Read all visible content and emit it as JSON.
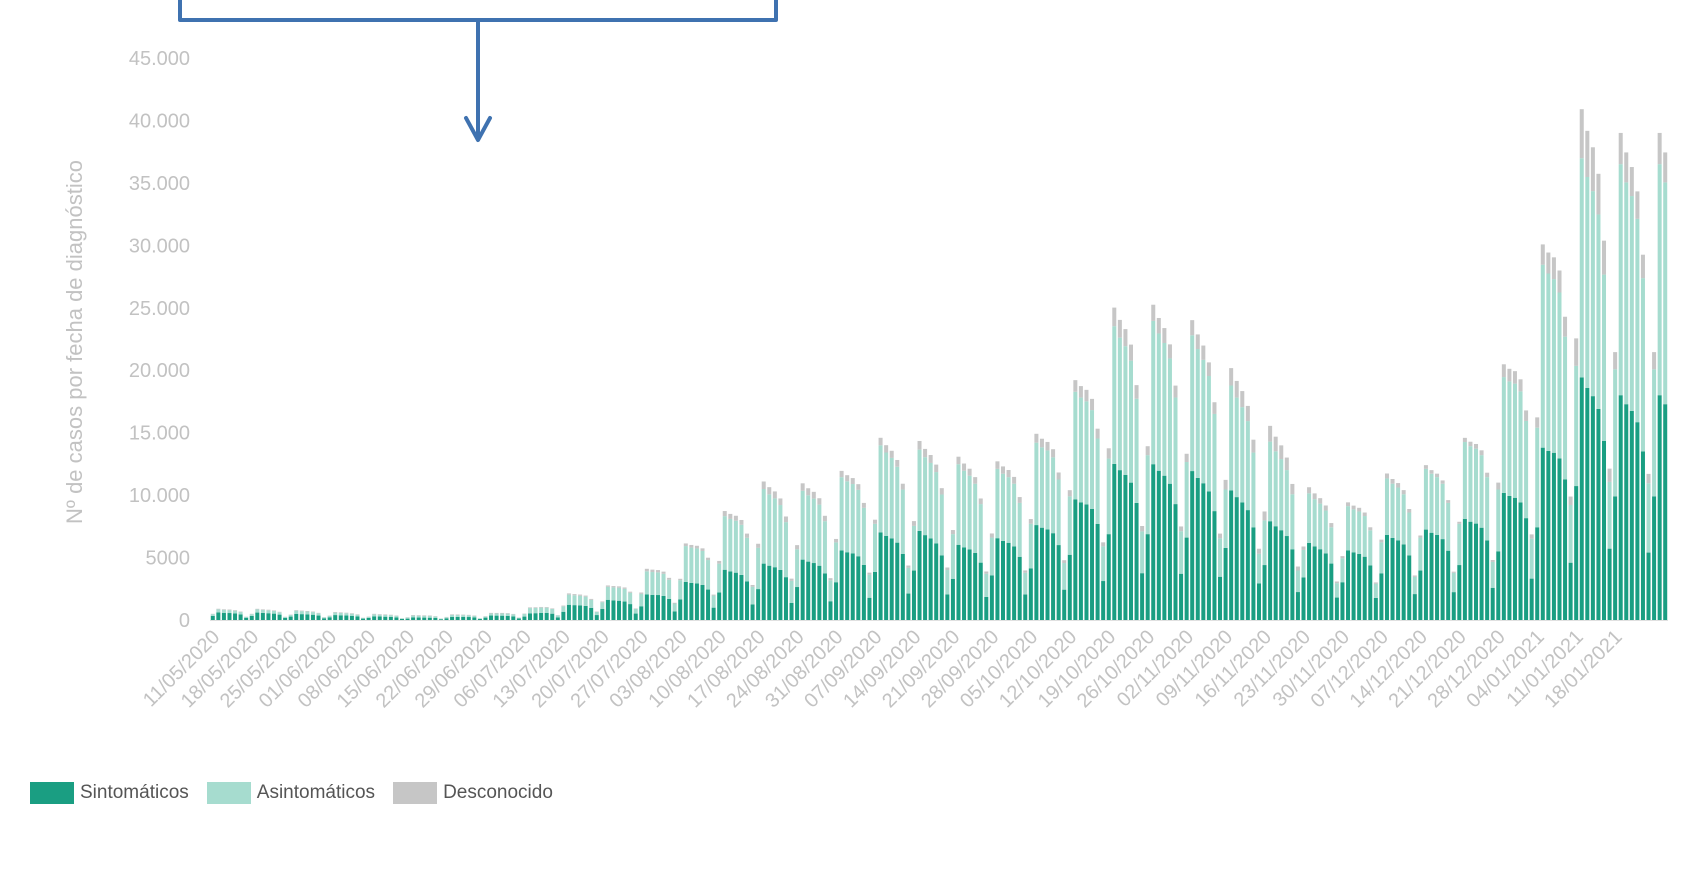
{
  "chart_data": {
    "type": "bar",
    "stacked": true,
    "title": "",
    "ylabel": "Nº de casos por fecha de diagnóstico",
    "xlabel": "",
    "ylim": [
      0,
      45000
    ],
    "y_ticks": [
      {
        "value": 0,
        "label": "0"
      },
      {
        "value": 5000,
        "label": "5000"
      },
      {
        "value": 10000,
        "label": "10.000"
      },
      {
        "value": 15000,
        "label": "15.000"
      },
      {
        "value": 20000,
        "label": "20.000"
      },
      {
        "value": 25000,
        "label": "25.000"
      },
      {
        "value": 30000,
        "label": "30.000"
      },
      {
        "value": 35000,
        "label": "35.000"
      },
      {
        "value": 40000,
        "label": "40.000"
      },
      {
        "value": 45000,
        "label": "45.000"
      }
    ],
    "x_tick_labels": [
      "11/05/2020",
      "18/05/2020",
      "25/05/2020",
      "01/06/2020",
      "08/06/2020",
      "15/06/2020",
      "22/06/2020",
      "29/06/2020",
      "06/07/2020",
      "13/07/2020",
      "20/07/2020",
      "27/07/2020",
      "03/08/2020",
      "10/08/2020",
      "17/08/2020",
      "24/08/2020",
      "31/08/2020",
      "07/09/2020",
      "14/09/2020",
      "21/09/2020",
      "28/09/2020",
      "05/10/2020",
      "12/10/2020",
      "19/10/2020",
      "26/10/2020",
      "02/11/2020",
      "09/11/2020",
      "16/11/2020",
      "23/11/2020",
      "30/11/2020",
      "07/12/2020",
      "14/12/2020",
      "21/12/2020",
      "28/12/2020",
      "04/01/2021",
      "11/01/2021",
      "18/01/2021"
    ],
    "series": [
      {
        "name": "Sintomáticos",
        "color": "#1a9e82",
        "weekly_peak_values": [
          600,
          600,
          500,
          400,
          300,
          200,
          250,
          350,
          500,
          1200,
          1600,
          2000,
          3000,
          4000,
          4500,
          4800,
          5500,
          7000,
          7200,
          6000,
          6500,
          7500,
          9500,
          12500,
          12500,
          12000,
          10500,
          8000,
          6200,
          5500,
          6800,
          7200,
          8000,
          10000,
          13500,
          19500,
          18000
        ]
      },
      {
        "name": "Asintomáticos",
        "color": "#a6dccf",
        "weekly_peak_values": [
          250,
          250,
          250,
          200,
          150,
          150,
          150,
          150,
          400,
          800,
          1000,
          1800,
          2800,
          4200,
          6000,
          5500,
          5800,
          7000,
          6500,
          6500,
          5500,
          6500,
          8500,
          11000,
          11500,
          11000,
          8500,
          6500,
          4000,
          3500,
          4500,
          4800,
          6000,
          9000,
          14500,
          17500,
          18500
        ]
      },
      {
        "name": "Desconocido",
        "color": "#c6c6c6",
        "weekly_peak_values": [
          50,
          50,
          50,
          50,
          50,
          50,
          50,
          50,
          50,
          100,
          100,
          200,
          200,
          400,
          600,
          600,
          500,
          600,
          700,
          600,
          600,
          700,
          900,
          1500,
          1300,
          1200,
          1400,
          1300,
          500,
          300,
          400,
          300,
          300,
          1000,
          1500,
          4000,
          2500
        ]
      }
    ]
  },
  "legend": {
    "items": [
      {
        "label": "Sintomáticos",
        "color": "#1a9e82"
      },
      {
        "label": "Asintomáticos",
        "color": "#a6dccf"
      },
      {
        "label": "Desconocido",
        "color": "#c6c6c6"
      }
    ]
  },
  "colors": {
    "axis_text": "#c2c2c2",
    "annotation": "#3f72b0",
    "legend_text": "#555555"
  }
}
